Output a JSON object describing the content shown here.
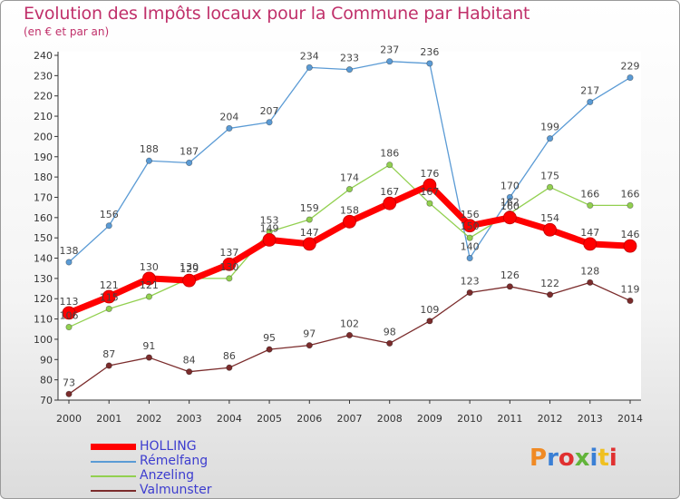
{
  "chart_data": {
    "type": "line",
    "title": "Evolution des Impôts locaux pour la Commune par Habitant",
    "subtitle": "(en € et par an)",
    "x": [
      "2000",
      "2001",
      "2002",
      "2003",
      "2004",
      "2005",
      "2006",
      "2007",
      "2008",
      "2009",
      "2010",
      "2011",
      "2012",
      "2013",
      "2014"
    ],
    "ylim": [
      70,
      240
    ],
    "yticks": [
      70,
      80,
      90,
      100,
      110,
      120,
      130,
      140,
      150,
      160,
      170,
      180,
      190,
      200,
      210,
      220,
      230,
      240
    ],
    "grid": false,
    "legend_position": "bottom-left",
    "series": [
      {
        "name": "HOLLING",
        "color": "#ff0000",
        "values": [
          113,
          121,
          130,
          129,
          137,
          149,
          147,
          158,
          167,
          176,
          156,
          160,
          154,
          147,
          146
        ]
      },
      {
        "name": "Rémelfang",
        "color": "#5b9bd5",
        "values": [
          138,
          156,
          188,
          187,
          204,
          207,
          234,
          233,
          237,
          236,
          140,
          170,
          199,
          217,
          229
        ]
      },
      {
        "name": "Anzeling",
        "color": "#92d050",
        "values": [
          106,
          115,
          121,
          130,
          130,
          153,
          159,
          174,
          186,
          167,
          150,
          162,
          175,
          166,
          166
        ]
      },
      {
        "name": "Valmunster",
        "color": "#7b2c2c",
        "values": [
          73,
          87,
          91,
          84,
          86,
          95,
          97,
          102,
          98,
          109,
          123,
          126,
          122,
          128,
          119
        ]
      }
    ]
  },
  "logo": {
    "text": "Proxiti",
    "colors": [
      "#f08a24",
      "#3a7fd5",
      "#e03030",
      "#62b43a",
      "#3a7fd5",
      "#f0c020",
      "#e03030"
    ]
  }
}
